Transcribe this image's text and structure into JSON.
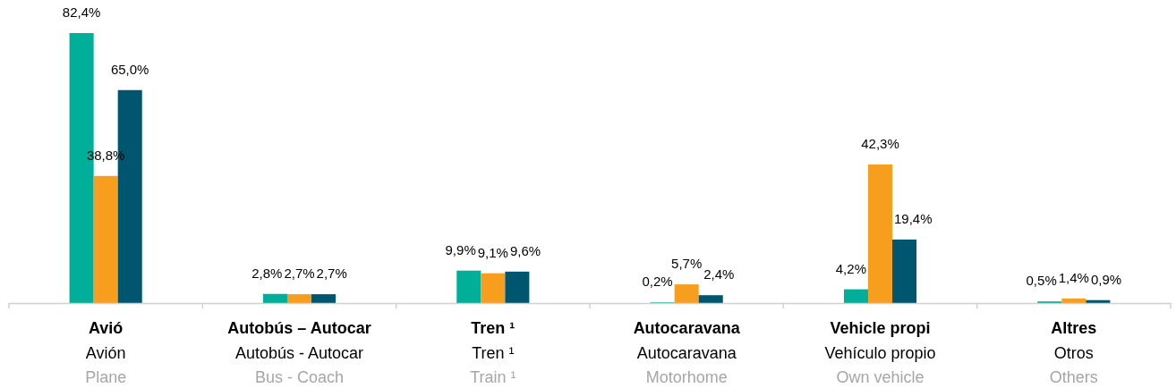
{
  "chart_data": {
    "type": "bar",
    "categories": [
      "Avió\nAvión\nPlane",
      "Autobús – Autocar\nAutobús - Autocar\nBus - Coach",
      "Tren ¹\nTren ¹\nTrain ¹",
      "Autocaravana\nAutocaravana\nMotorhome",
      "Vehicle propi\nVehículo propio\nOwn vehicle",
      "Altres\nOtros\nOthers"
    ],
    "series": [
      {
        "color": "#00ae9a",
        "values": [
          82.4,
          2.8,
          9.9,
          0.2,
          4.2,
          0.5
        ],
        "value_labels": [
          "82,4%",
          "2,8%",
          "9,9%",
          "0,2%",
          "4,2%",
          "0,5%"
        ]
      },
      {
        "color": "#f89e1f",
        "values": [
          38.8,
          2.7,
          9.1,
          5.7,
          42.3,
          1.4
        ],
        "value_labels": [
          "38,8%",
          "2,7%",
          "9,1%",
          "5,7%",
          "42,3%",
          "1,4%"
        ]
      },
      {
        "color": "#00566f",
        "values": [
          65.0,
          2.7,
          9.6,
          2.4,
          19.4,
          0.9
        ],
        "value_labels": [
          "65,0%",
          "2,7%",
          "9,6%",
          "2,4%",
          "19,4%",
          "0,9%"
        ]
      }
    ]
  }
}
